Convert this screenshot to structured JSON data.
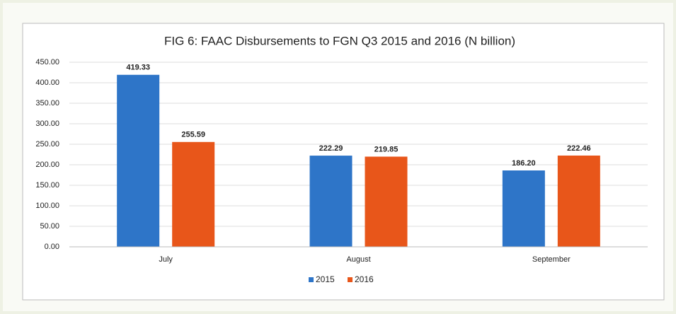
{
  "chart_data": {
    "type": "bar",
    "title": "FIG 6: FAAC Disbursements to FGN Q3 2015 and 2016 (N billion)",
    "categories": [
      "July",
      "August",
      "September"
    ],
    "series": [
      {
        "name": "2015",
        "color": "#2e75c8",
        "values": [
          419.33,
          222.29,
          186.2
        ],
        "value_labels": [
          "419.33",
          "222.29",
          "186.20"
        ]
      },
      {
        "name": "2016",
        "color": "#e8561a",
        "values": [
          255.59,
          219.85,
          222.46
        ],
        "value_labels": [
          "255.59",
          "219.85",
          "222.46"
        ]
      }
    ],
    "ylim": [
      0,
      450
    ],
    "yticks": [
      {
        "value": 0,
        "label": "0.00"
      },
      {
        "value": 50,
        "label": "50.00"
      },
      {
        "value": 100,
        "label": "100.00"
      },
      {
        "value": 150,
        "label": "150.00"
      },
      {
        "value": 200,
        "label": "200.00"
      },
      {
        "value": 250,
        "label": "250.00"
      },
      {
        "value": 300,
        "label": "300.00"
      },
      {
        "value": 350,
        "label": "350.00"
      },
      {
        "value": 400,
        "label": "400.00"
      },
      {
        "value": 450,
        "label": "450.00"
      }
    ],
    "grid": true,
    "legend": "bottom"
  }
}
